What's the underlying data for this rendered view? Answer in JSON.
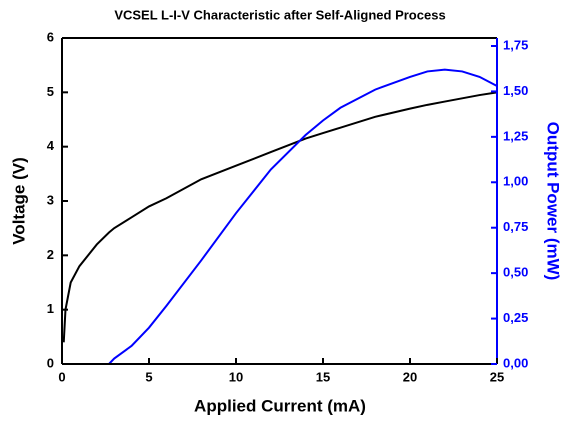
{
  "chart_data": {
    "type": "line",
    "title": "VCSEL L-I-V Characteristic after Self-Aligned Process",
    "xlabel": "Applied Current (mA)",
    "ylabel": "Voltage (V)",
    "y2label": "Output Power (mW)",
    "x": [
      0.1,
      0.2,
      0.5,
      1,
      2,
      2.7,
      3,
      4,
      5,
      6,
      8,
      10,
      12,
      14,
      15,
      16,
      18,
      20,
      21,
      22,
      23,
      24,
      25
    ],
    "series": [
      {
        "name": "Voltage",
        "color": "#000000",
        "axis": "y",
        "values": [
          0.4,
          1.0,
          1.5,
          1.8,
          2.2,
          2.42,
          2.5,
          2.7,
          2.9,
          3.05,
          3.4,
          3.65,
          3.9,
          4.15,
          4.25,
          4.35,
          4.55,
          4.7,
          4.77,
          4.83,
          4.89,
          4.95,
          5.0
        ]
      },
      {
        "name": "Output Power",
        "color": "#0000ff",
        "axis": "y2",
        "values": [
          0,
          0,
          0,
          0,
          0,
          0,
          0.03,
          0.1,
          0.2,
          0.32,
          0.57,
          0.83,
          1.07,
          1.26,
          1.34,
          1.41,
          1.51,
          1.58,
          1.61,
          1.62,
          1.61,
          1.58,
          1.53
        ]
      }
    ],
    "xlim": [
      0,
      25
    ],
    "xticks": [
      0,
      5,
      10,
      15,
      20,
      25
    ],
    "ylim": [
      0,
      6
    ],
    "yticks": [
      0,
      1,
      2,
      3,
      4,
      5,
      6
    ],
    "y2lim": [
      0,
      1.794
    ],
    "y2ticks": [
      {
        "value": 0,
        "label": "0,00"
      },
      {
        "value": 0.25,
        "label": "0,25"
      },
      {
        "value": 0.5,
        "label": "0,50"
      },
      {
        "value": 0.75,
        "label": "0,75"
      },
      {
        "value": 1.0,
        "label": "1,00"
      },
      {
        "value": 1.25,
        "label": "1,25"
      },
      {
        "value": 1.5,
        "label": "1,50"
      },
      {
        "value": 1.75,
        "label": "1,75"
      }
    ],
    "y2color": "#0000ff"
  }
}
